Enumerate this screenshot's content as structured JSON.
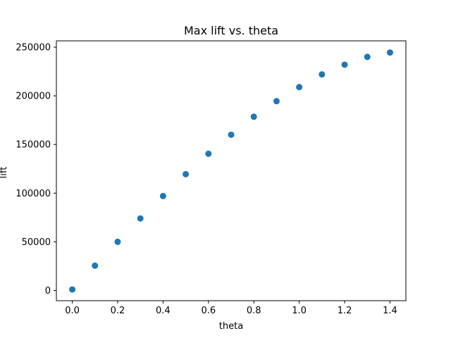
{
  "chart_data": {
    "type": "scatter",
    "title": "Max lift vs. theta",
    "xlabel": "theta",
    "ylabel": "lift",
    "xlim": [
      -0.07,
      1.47
    ],
    "ylim": [
      -10500,
      256500
    ],
    "xticks": [
      0.0,
      0.2,
      0.4,
      0.6,
      0.8,
      1.0,
      1.2,
      1.4
    ],
    "xtick_labels": [
      "0.0",
      "0.2",
      "0.4",
      "0.6",
      "0.8",
      "1.0",
      "1.2",
      "1.4"
    ],
    "yticks": [
      0,
      50000,
      100000,
      150000,
      200000,
      250000
    ],
    "ytick_labels": [
      "0",
      "50000",
      "100000",
      "150000",
      "200000",
      "250000"
    ],
    "grid": false,
    "marker_color": "#1f77b4",
    "series": [
      {
        "x": [
          0.0,
          0.1,
          0.2,
          0.3,
          0.4,
          0.5,
          0.6,
          0.7,
          0.8,
          0.9,
          1.0,
          1.1,
          1.2,
          1.3,
          1.4
        ],
        "y": [
          1000,
          25500,
          50000,
          74000,
          97000,
          119500,
          140500,
          160000,
          178500,
          194500,
          209000,
          222000,
          232000,
          240000,
          244500
        ]
      }
    ]
  }
}
